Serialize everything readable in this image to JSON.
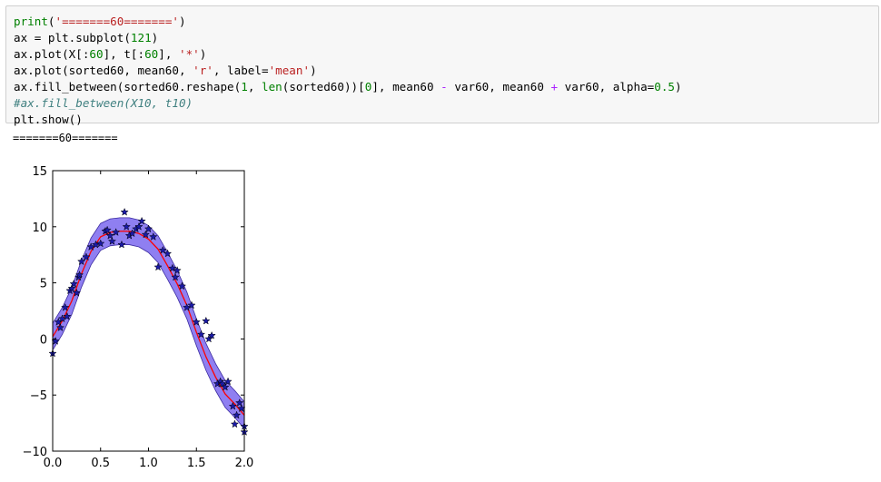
{
  "code_cell": {
    "lines": [
      "print('=======60=======')",
      "ax = plt.subplot(121)",
      "ax.plot(X[:60], t[:60], '*')",
      "ax.plot(sorted60, mean60, 'r', label='mean')",
      "ax.fill_between(sorted60.reshape(1, len(sorted60))[0], mean60 - var60, mean60 + var60, alpha=0.5)",
      "#ax.fill_between(X10, t10)",
      "plt.show()"
    ]
  },
  "output": {
    "printed": "=======60======="
  },
  "chart_data": {
    "type": "scatter",
    "xlim": [
      0.0,
      2.0
    ],
    "ylim": [
      -10,
      15
    ],
    "x_ticks": [
      "0.0",
      "0.5",
      "1.0",
      "1.5",
      "2.0"
    ],
    "y_ticks": [
      "15",
      "10",
      "5",
      "0",
      "−5",
      "−10"
    ],
    "grid": false,
    "colors": {
      "points": "#1a1aa8",
      "mean": "#ff0000",
      "band": "#7b68ee"
    },
    "points": {
      "x": [
        0.0,
        0.03,
        0.06,
        0.08,
        0.1,
        0.13,
        0.15,
        0.18,
        0.2,
        0.22,
        0.25,
        0.27,
        0.28,
        0.3,
        0.35,
        0.4,
        0.45,
        0.5,
        0.55,
        0.57,
        0.6,
        0.62,
        0.66,
        0.72,
        0.75,
        0.77,
        0.8,
        0.83,
        0.87,
        0.9,
        0.93,
        0.97,
        1.0,
        1.05,
        1.1,
        1.15,
        1.2,
        1.25,
        1.28,
        1.3,
        1.35,
        1.4,
        1.45,
        1.5,
        1.55,
        1.6,
        1.63,
        1.66,
        1.72,
        1.75,
        1.77,
        1.8,
        1.83,
        1.88,
        1.92,
        1.95,
        1.97,
        2.0,
        2.0,
        1.9
      ],
      "y": [
        -1.3,
        -0.2,
        1.5,
        1.0,
        1.8,
        2.8,
        2.0,
        4.3,
        4.5,
        4.9,
        4.1,
        5.5,
        5.7,
        6.9,
        7.3,
        8.2,
        8.4,
        8.5,
        9.6,
        9.7,
        9.2,
        8.7,
        9.5,
        8.4,
        11.3,
        10.0,
        9.2,
        9.4,
        9.8,
        10.0,
        10.5,
        9.3,
        9.8,
        9.1,
        6.4,
        7.9,
        7.6,
        6.3,
        5.5,
        6.1,
        4.7,
        2.8,
        3.0,
        1.5,
        0.4,
        1.6,
        0.0,
        0.3,
        -4.0,
        -3.8,
        -4.0,
        -4.3,
        -3.8,
        -6.0,
        -6.8,
        -5.7,
        -6.2,
        -7.8,
        -8.3,
        -7.6
      ]
    },
    "mean": {
      "x": [
        0.0,
        0.1,
        0.2,
        0.3,
        0.4,
        0.5,
        0.6,
        0.7,
        0.8,
        0.9,
        1.0,
        1.1,
        1.2,
        1.3,
        1.4,
        1.5,
        1.6,
        1.7,
        1.8,
        1.9,
        2.0
      ],
      "y": [
        0.2,
        1.6,
        3.4,
        5.8,
        7.8,
        9.1,
        9.5,
        9.6,
        9.6,
        9.4,
        8.9,
        8.0,
        6.5,
        4.9,
        3.0,
        0.6,
        -1.6,
        -3.4,
        -4.9,
        -5.8,
        -6.8
      ]
    },
    "band_halfwidth": 1.2
  }
}
